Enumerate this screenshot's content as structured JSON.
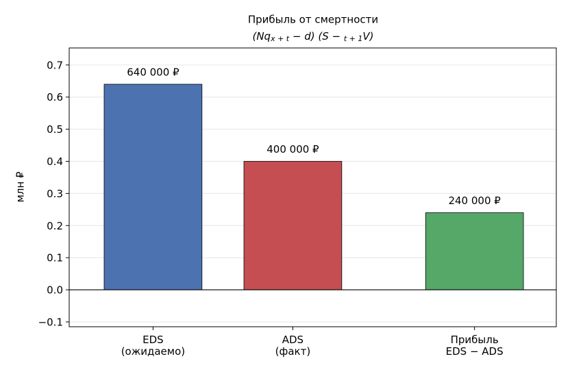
{
  "chart_data": {
    "type": "bar",
    "title": "Прибыль от смертности",
    "subtitle": [
      "(Nq",
      "x + t",
      " − d) (S − ",
      "t + 1",
      "V)"
    ],
    "y_label": "млн ₽",
    "categories": [
      "EDS\n(ожидаемо)",
      "ADS\n(факт)",
      "Прибыль\nEDS − ADS"
    ],
    "values": [
      0.64,
      0.4,
      0.24
    ],
    "value_labels": [
      "640 000 ₽",
      "400 000 ₽",
      "240 000 ₽"
    ],
    "colors": [
      "#4c72b0",
      "#c44e52",
      "#55a868"
    ],
    "ylim": [
      -0.115,
      0.753
    ],
    "yticks": [
      {
        "value": -0.1,
        "label": "−0.1"
      },
      {
        "value": 0,
        "label": "0.0"
      },
      0.1,
      0.2,
      0.3,
      0.4,
      0.5,
      0.6,
      0.7
    ],
    "grid": true
  }
}
